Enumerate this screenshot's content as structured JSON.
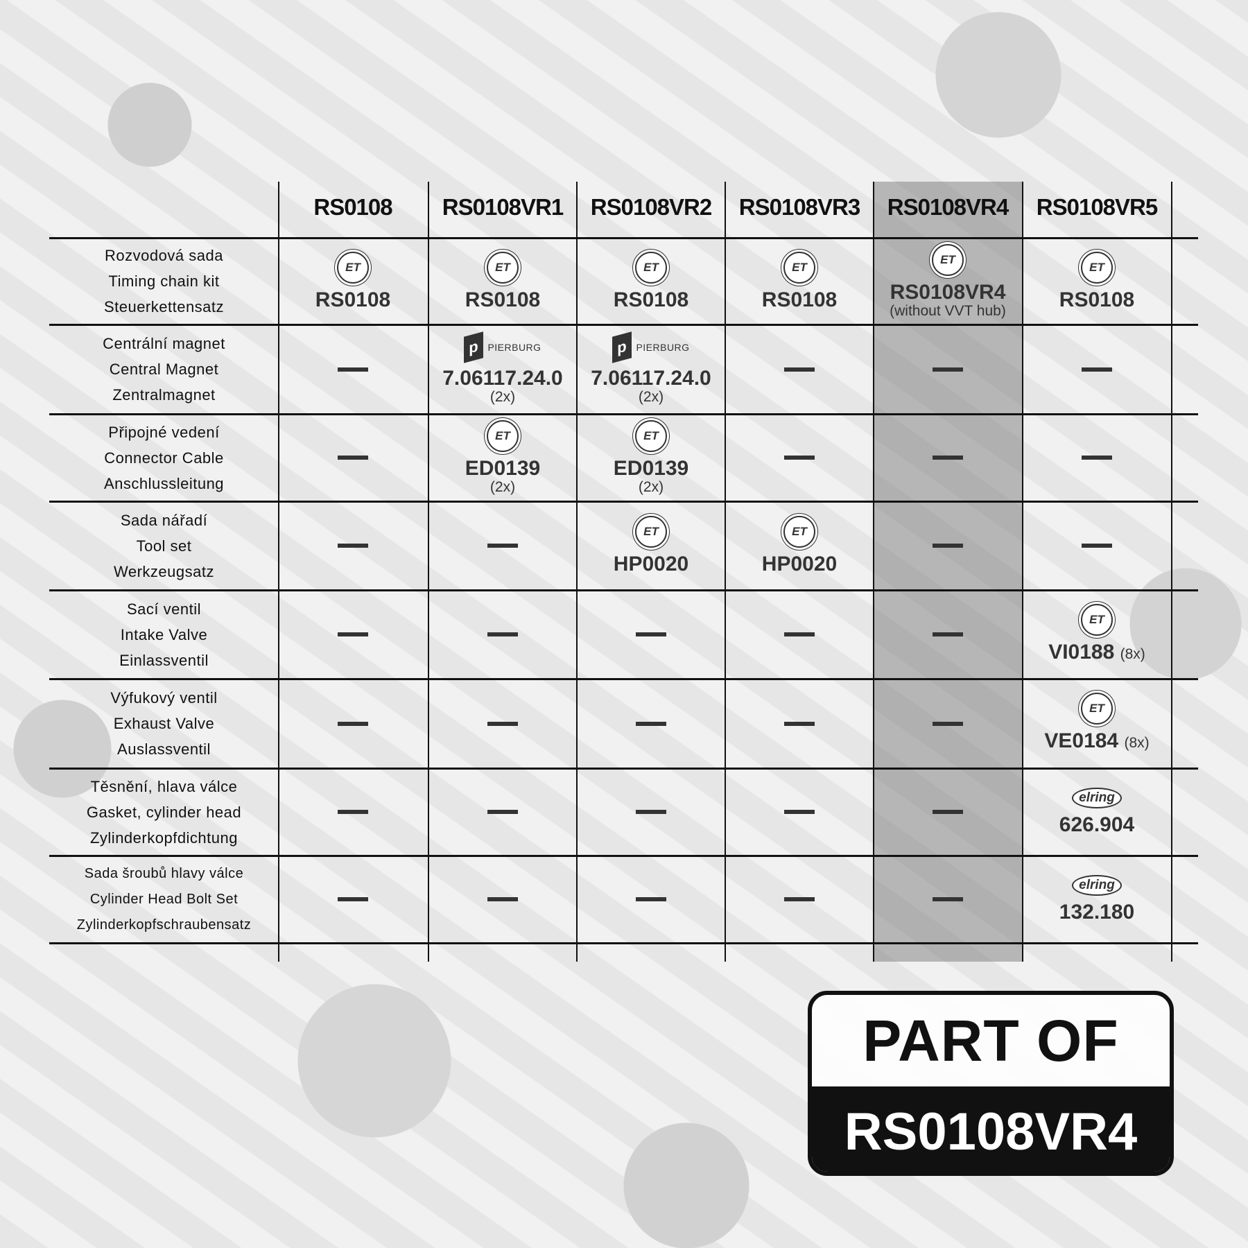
{
  "columns": [
    "RS0108",
    "RS0108VR1",
    "RS0108VR2",
    "RS0108VR3",
    "RS0108VR4",
    "RS0108VR5"
  ],
  "highlighted_column": "RS0108VR4",
  "rows": [
    {
      "labels": [
        "Rozvodová sada",
        "Timing chain kit",
        "Steuerkettensatz"
      ],
      "cells": [
        {
          "logo": "et-logo",
          "part": "RS0108"
        },
        {
          "logo": "et-logo",
          "part": "RS0108"
        },
        {
          "logo": "et-logo",
          "part": "RS0108"
        },
        {
          "logo": "et-logo",
          "part": "RS0108"
        },
        {
          "logo": "et-logo",
          "part": "RS0108VR4",
          "note": "(without VVT hub)"
        },
        {
          "logo": "et-logo",
          "part": "RS0108"
        }
      ]
    },
    {
      "labels": [
        "Centrální magnet",
        "Central Magnet",
        "Zentralmagnet"
      ],
      "cells": [
        null,
        {
          "logo": "pierburg-logo",
          "logo_text": "PIERBURG",
          "part": "7.06117.24.0",
          "qty": "(2x)"
        },
        {
          "logo": "pierburg-logo",
          "logo_text": "PIERBURG",
          "part": "7.06117.24.0",
          "qty": "(2x)"
        },
        null,
        null,
        null
      ]
    },
    {
      "labels": [
        "Připojné vedení",
        "Connector Cable",
        "Anschlussleitung"
      ],
      "cells": [
        null,
        {
          "logo": "et-logo",
          "part": "ED0139",
          "qty": "(2x)"
        },
        {
          "logo": "et-logo",
          "part": "ED0139",
          "qty": "(2x)"
        },
        null,
        null,
        null
      ]
    },
    {
      "labels": [
        "Sada nářadí",
        "Tool set",
        "Werkzeugsatz"
      ],
      "cells": [
        null,
        null,
        {
          "logo": "et-logo",
          "part": "HP0020"
        },
        {
          "logo": "et-logo",
          "part": "HP0020"
        },
        null,
        null
      ]
    },
    {
      "labels": [
        "Sací ventil",
        "Intake Valve",
        "Einlassventil"
      ],
      "cells": [
        null,
        null,
        null,
        null,
        null,
        {
          "logo": "et-logo",
          "part": "VI0188",
          "qty_inline": "(8x)"
        }
      ]
    },
    {
      "labels": [
        "Výfukový ventil",
        "Exhaust Valve",
        "Auslassventil"
      ],
      "cells": [
        null,
        null,
        null,
        null,
        null,
        {
          "logo": "et-logo",
          "part": "VE0184",
          "qty_inline": "(8x)"
        }
      ]
    },
    {
      "labels": [
        "Těsnění, hlava válce",
        "Gasket, cylinder head",
        "Zylinderkopfdichtung"
      ],
      "cells": [
        null,
        null,
        null,
        null,
        null,
        {
          "logo": "elring-logo",
          "logo_text": "elring",
          "part": "626.904"
        }
      ]
    },
    {
      "labels": [
        "Sada šroubů hlavy válce",
        "Cylinder Head Bolt Set",
        "Zylinderkopfschraubensatz"
      ],
      "cells": [
        null,
        null,
        null,
        null,
        null,
        {
          "logo": "elring-logo",
          "logo_text": "elring",
          "part": "132.180"
        }
      ]
    }
  ],
  "et_logo_text": "ET",
  "badge": {
    "top": "PART OF",
    "bottom": "RS0108VR4"
  },
  "colors": {
    "highlight": "#8a8a8a",
    "text": "#111111",
    "badge_bg": "#111111"
  }
}
